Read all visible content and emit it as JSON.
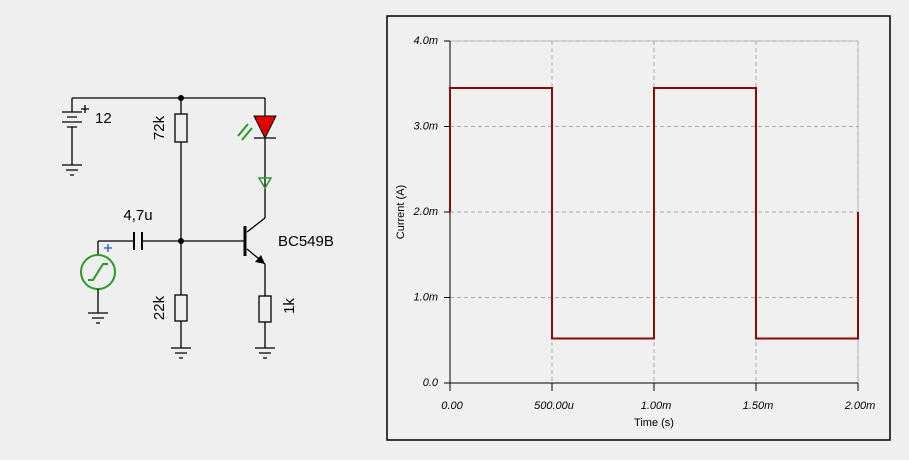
{
  "circuit": {
    "battery": "12",
    "r_top": "72k",
    "capacitor": "4,7u",
    "transistor": "BC549B",
    "r_bottom": "22k",
    "r_emitter": "1k"
  },
  "chart_data": {
    "type": "line",
    "xlabel": "Time (s)",
    "ylabel": "Current (A)",
    "x": [
      0,
      0,
      0.0005,
      0.0005,
      0.001,
      0.001,
      0.001,
      0.0015,
      0.0015,
      0.002,
      0.002
    ],
    "values": [
      0.002,
      0.00345,
      0.00345,
      0.00052,
      0.00052,
      0.002,
      0.00345,
      0.00345,
      0.00052,
      0.00052,
      0.002
    ],
    "color": "#8b0a0a",
    "xlim": [
      0,
      0.002
    ],
    "ylim": [
      0,
      0.004
    ],
    "xticks": [
      {
        "value": 0,
        "label": "0.00"
      },
      {
        "value": 0.0005,
        "label": "500.00u"
      },
      {
        "value": 0.001,
        "label": "1.00m"
      },
      {
        "value": 0.0015,
        "label": "1.50m"
      },
      {
        "value": 0.002,
        "label": "2.00m"
      }
    ],
    "yticks": [
      {
        "value": 0,
        "label": "0.0"
      },
      {
        "value": 0.001,
        "label": "1.0m"
      },
      {
        "value": 0.002,
        "label": "2.0m"
      },
      {
        "value": 0.003,
        "label": "3.0m"
      },
      {
        "value": 0.004,
        "label": "4.0m"
      }
    ],
    "grid": true
  }
}
